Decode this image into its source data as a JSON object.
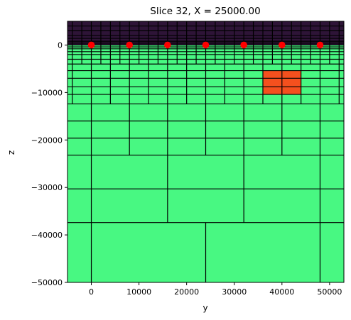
{
  "chart_data": {
    "type": "heatmap",
    "title": "Slice 32, X = 25000.00",
    "xlabel": "y",
    "ylabel": "z",
    "xlim": [
      -5000,
      53000
    ],
    "ylim": [
      -50000,
      5000
    ],
    "xticks": [
      0,
      10000,
      20000,
      30000,
      40000,
      50000
    ],
    "yticks": [
      0,
      -10000,
      -20000,
      -30000,
      -40000,
      -50000
    ],
    "xtick_labels": [
      "0",
      "10000",
      "20000",
      "30000",
      "40000",
      "50000"
    ],
    "ytick_labels": [
      "0",
      "−10000",
      "−20000",
      "−30000",
      "−40000",
      "−50000"
    ],
    "grid": false,
    "colors": {
      "air": "#2e1437",
      "background": "#48f882",
      "block": "#f4501e",
      "grid_line": "#000000",
      "points": "#ff0000"
    },
    "regions": [
      {
        "name": "air",
        "y": [
          -5000,
          53000
        ],
        "z": [
          0,
          5000
        ],
        "color": "#2e1437"
      },
      {
        "name": "background",
        "y": [
          -5000,
          53000
        ],
        "z": [
          -50000,
          0
        ],
        "color": "#48f882"
      },
      {
        "name": "block",
        "y": [
          36000,
          44000
        ],
        "z": [
          -10400,
          -5400
        ],
        "color": "#f4501e"
      }
    ],
    "mesh_rows": [
      {
        "z_top": 5000,
        "z_bot": 4000,
        "dy": 2000
      },
      {
        "z_top": 4000,
        "z_bot": 3000,
        "dy": 2000
      },
      {
        "z_top": 3000,
        "z_bot": 2000,
        "dy": 2000
      },
      {
        "z_top": 2000,
        "z_bot": 1400,
        "dy": 2000
      },
      {
        "z_top": 1400,
        "z_bot": 800,
        "dy": 2000
      },
      {
        "z_top": 800,
        "z_bot": 400,
        "dy": 2000
      },
      {
        "z_top": 400,
        "z_bot": 0,
        "dy": 2000
      },
      {
        "z_top": 0,
        "z_bot": -400,
        "dy": 2000
      },
      {
        "z_top": -400,
        "z_bot": -800,
        "dy": 2000
      },
      {
        "z_top": -800,
        "z_bot": -1400,
        "dy": 2000
      },
      {
        "z_top": -1400,
        "z_bot": -2000,
        "dy": 2000
      },
      {
        "z_top": -2000,
        "z_bot": -3000,
        "dy": 2000
      },
      {
        "z_top": -3000,
        "z_bot": -4000,
        "dy": 2000
      },
      {
        "z_top": -4000,
        "z_bot": -5400,
        "dy": 4000
      },
      {
        "z_top": -5400,
        "z_bot": -7000,
        "dy": 4000
      },
      {
        "z_top": -7000,
        "z_bot": -8800,
        "dy": 4000
      },
      {
        "z_top": -8800,
        "z_bot": -10400,
        "dy": 4000
      },
      {
        "z_top": -10400,
        "z_bot": -12400,
        "dy": 4000
      },
      {
        "z_top": -12400,
        "z_bot": -16000,
        "dy": 8000
      },
      {
        "z_top": -16000,
        "z_bot": -19600,
        "dy": 8000
      },
      {
        "z_top": -19600,
        "z_bot": -23200,
        "dy": 8000
      },
      {
        "z_top": -23200,
        "z_bot": -30300,
        "dy": 16000
      },
      {
        "z_top": -30300,
        "z_bot": -37400,
        "dy": 16000
      },
      {
        "z_top": -37400,
        "z_bot": -50000,
        "dy": 24000
      }
    ],
    "points": [
      {
        "y": 0,
        "z": 0
      },
      {
        "y": 8000,
        "z": 0
      },
      {
        "y": 16000,
        "z": 0
      },
      {
        "y": 24000,
        "z": 0
      },
      {
        "y": 32000,
        "z": 0
      },
      {
        "y": 40000,
        "z": 0
      },
      {
        "y": 48000,
        "z": 0
      }
    ]
  }
}
